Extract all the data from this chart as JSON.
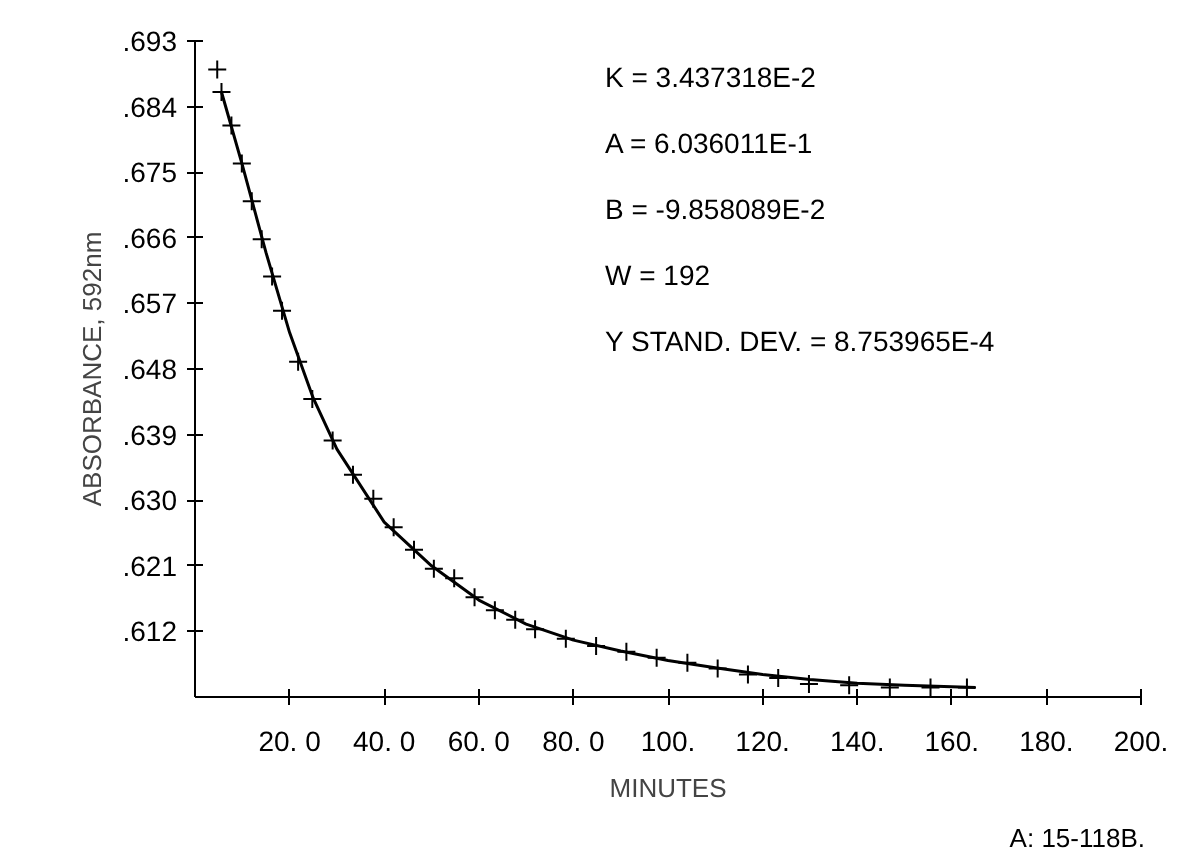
{
  "chart_data": {
    "type": "scatter",
    "xlabel": "MINUTES",
    "ylabel": "ABSORBANCE, 592nm",
    "xlim": [
      0,
      200
    ],
    "ylim": [
      0.603,
      0.693
    ],
    "xticks": [
      {
        "value": 20,
        "label": "20. 0"
      },
      {
        "value": 40,
        "label": "40. 0"
      },
      {
        "value": 60,
        "label": "60. 0"
      },
      {
        "value": 80,
        "label": "80. 0"
      },
      {
        "value": 100,
        "label": "100."
      },
      {
        "value": 120,
        "label": "120."
      },
      {
        "value": 140,
        "label": "140."
      },
      {
        "value": 160,
        "label": "160."
      },
      {
        "value": 180,
        "label": "180."
      },
      {
        "value": 200,
        "label": "200."
      }
    ],
    "yticks": [
      {
        "value": 0.612,
        "label": ".612"
      },
      {
        "value": 0.621,
        "label": ".621"
      },
      {
        "value": 0.63,
        "label": ".630"
      },
      {
        "value": 0.639,
        "label": ".639"
      },
      {
        "value": 0.648,
        "label": ".648"
      },
      {
        "value": 0.657,
        "label": ".657"
      },
      {
        "value": 0.666,
        "label": ".666"
      },
      {
        "value": 0.675,
        "label": ".675"
      },
      {
        "value": 0.684,
        "label": ".684"
      },
      {
        "value": 0.693,
        "label": ".693"
      }
    ],
    "grid": false,
    "series": [
      {
        "marker": "cross",
        "color": "#000000",
        "x": [
          4.7,
          5.6,
          7.7,
          9.9,
          12.0,
          14.1,
          16.3,
          18.4,
          21.8,
          24.8,
          29.1,
          33.4,
          37.7,
          42.0,
          46.3,
          50.5,
          54.8,
          59.1,
          63.4,
          67.7,
          71.9,
          78.4,
          84.8,
          91.2,
          97.6,
          104.1,
          110.5,
          116.9,
          123.3,
          129.8,
          138.3,
          146.9,
          155.5,
          163.2
        ],
        "values": [
          0.6891,
          0.686,
          0.6814,
          0.6762,
          0.671,
          0.6658,
          0.6607,
          0.656,
          0.649,
          0.6439,
          0.6382,
          0.6335,
          0.6302,
          0.6263,
          0.6232,
          0.6206,
          0.6193,
          0.6167,
          0.6149,
          0.6136,
          0.6123,
          0.611,
          0.61,
          0.6092,
          0.6084,
          0.6077,
          0.6069,
          0.6061,
          0.6056,
          0.6048,
          0.6046,
          0.6043,
          0.6043,
          0.6043
        ]
      },
      {
        "type": "line",
        "color": "#000000",
        "x": [
          5.6,
          10,
          15,
          20,
          25,
          30,
          40,
          50,
          60,
          70,
          80,
          90,
          100,
          110,
          120,
          130,
          140,
          150,
          160,
          165
        ],
        "values": [
          0.686,
          0.676,
          0.664,
          0.653,
          0.644,
          0.637,
          0.627,
          0.621,
          0.6163,
          0.613,
          0.6108,
          0.6093,
          0.608,
          0.607,
          0.6061,
          0.6054,
          0.6049,
          0.6046,
          0.6044,
          0.6043
        ]
      }
    ],
    "annotations": [
      "K = 3.437318E-2",
      "A = 6.036011E-1",
      "B = -9.858089E-2",
      "W = 192",
      "Y STAND. DEV. = 8.753965E-4",
      "A: 15-118B."
    ]
  }
}
